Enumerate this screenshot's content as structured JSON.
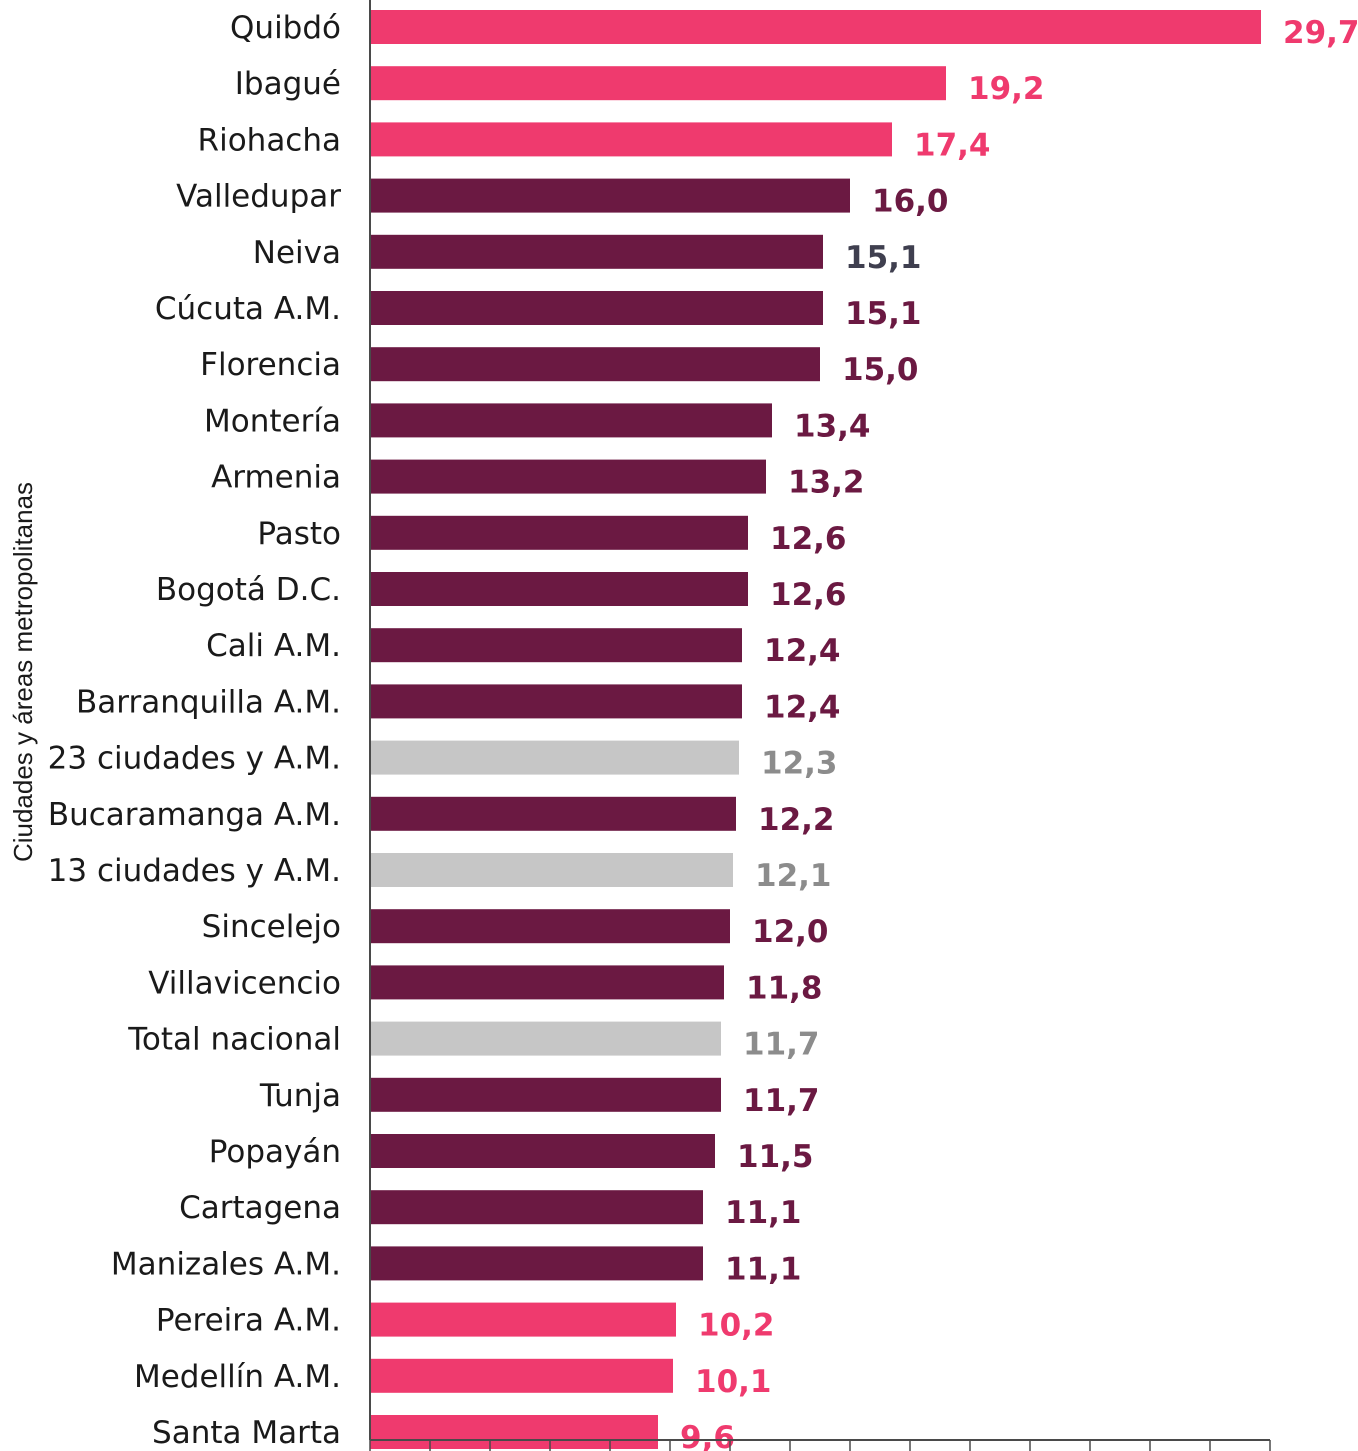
{
  "colors": {
    "highlight": "#EF3A6E",
    "primary": "#6B1942",
    "reference": "#C6C6C6",
    "reference_text": "#8C8C8C",
    "alt_text": "#3F3F4F",
    "axis": "#4A4A4A"
  },
  "chart_data": {
    "type": "bar",
    "orientation": "horizontal",
    "title": "",
    "ylabel": "Ciudades y áreas metropolitanas",
    "xlabel": "",
    "xlim": [
      0,
      30
    ],
    "tick_step": 2,
    "grid": false,
    "categories": [
      "Quibdó",
      "Ibagué",
      "Riohacha",
      "Valledupar",
      "Neiva",
      "Cúcuta A.M.",
      "Florencia",
      "Montería",
      "Armenia",
      "Pasto",
      "Bogotá D.C.",
      "Cali A.M.",
      "Barranquilla A.M.",
      "23 ciudades y A.M.",
      "Bucaramanga A.M.",
      "13 ciudades y A.M.",
      "Sincelejo",
      "Villavicencio",
      "Total nacional",
      "Tunja",
      "Popayán",
      "Cartagena",
      "Manizales A.M.",
      "Pereira A.M.",
      "Medellín A.M.",
      "Santa Marta"
    ],
    "values": [
      29.7,
      19.2,
      17.4,
      16.0,
      15.1,
      15.1,
      15.0,
      13.4,
      13.2,
      12.6,
      12.6,
      12.4,
      12.4,
      12.3,
      12.2,
      12.1,
      12.0,
      11.8,
      11.7,
      11.7,
      11.5,
      11.1,
      11.1,
      10.2,
      10.1,
      9.6
    ],
    "value_labels": [
      "29,7",
      "19,2",
      "17,4",
      "16,0",
      "15,1",
      "15,1",
      "15,0",
      "13,4",
      "13,2",
      "12,6",
      "12,6",
      "12,4",
      "12,4",
      "12,3",
      "12,2",
      "12,1",
      "12,0",
      "11,8",
      "11,7",
      "11,7",
      "11,5",
      "11,1",
      "11,1",
      "10,2",
      "10,1",
      "9,6"
    ],
    "bar_groups": [
      "highlight",
      "highlight",
      "highlight",
      "primary",
      "primary",
      "primary",
      "primary",
      "primary",
      "primary",
      "primary",
      "primary",
      "primary",
      "primary",
      "reference",
      "primary",
      "reference",
      "primary",
      "primary",
      "reference",
      "primary",
      "primary",
      "primary",
      "primary",
      "highlight",
      "highlight",
      "highlight"
    ],
    "label_groups": [
      "highlight",
      "highlight",
      "highlight",
      "primary",
      "alt",
      "primary",
      "primary",
      "primary",
      "primary",
      "primary",
      "primary",
      "primary",
      "primary",
      "reference",
      "primary",
      "reference",
      "primary",
      "primary",
      "reference",
      "primary",
      "primary",
      "primary",
      "primary",
      "highlight",
      "highlight",
      "highlight"
    ]
  }
}
